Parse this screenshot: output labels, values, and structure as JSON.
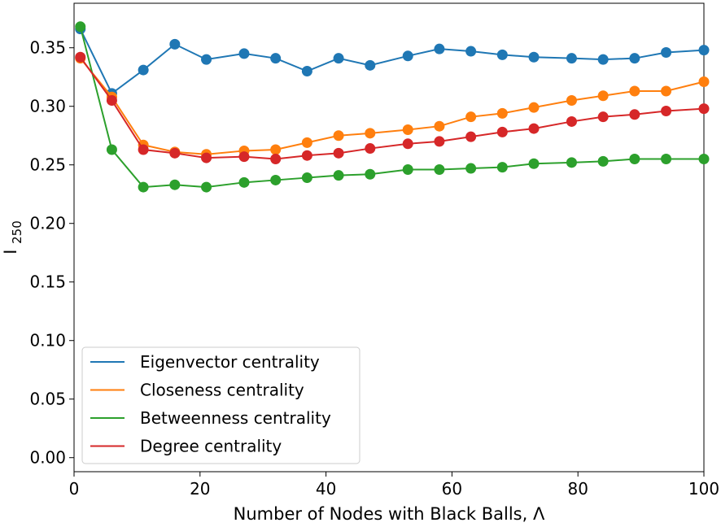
{
  "chart_data": {
    "type": "line",
    "title": "",
    "xlabel": "Number of Nodes with Black Balls, Λ",
    "ylabel": {
      "base": "I",
      "subscript": "250"
    },
    "xlim": [
      0,
      100
    ],
    "ylim": [
      -0.012,
      0.388
    ],
    "xticks": [
      0,
      20,
      40,
      60,
      80,
      100
    ],
    "xtick_labels": [
      "0",
      "20",
      "40",
      "60",
      "80",
      "100"
    ],
    "yticks": [
      0.0,
      0.05,
      0.1,
      0.15,
      0.2,
      0.25,
      0.3,
      0.35
    ],
    "ytick_labels": [
      "0.00",
      "0.05",
      "0.10",
      "0.15",
      "0.20",
      "0.25",
      "0.30",
      "0.35"
    ],
    "grid": false,
    "legend_position": "lower-left",
    "x": [
      1,
      6,
      11,
      16,
      21,
      27,
      32,
      37,
      42,
      47,
      53,
      58,
      63,
      68,
      73,
      79,
      84,
      89,
      94,
      100
    ],
    "series": [
      {
        "name": "Eigenvector centrality",
        "color": "#1f77b4",
        "values": [
          0.366,
          0.311,
          0.331,
          0.353,
          0.34,
          0.345,
          0.341,
          0.33,
          0.341,
          0.335,
          0.343,
          0.349,
          0.347,
          0.344,
          0.342,
          0.341,
          0.34,
          0.341,
          0.346,
          0.348
        ]
      },
      {
        "name": "Closeness centrality",
        "color": "#ff7f0e",
        "values": [
          0.341,
          0.308,
          0.267,
          0.261,
          0.259,
          0.262,
          0.263,
          0.269,
          0.275,
          0.277,
          0.28,
          0.283,
          0.291,
          0.294,
          0.299,
          0.305,
          0.309,
          0.313,
          0.313,
          0.321
        ]
      },
      {
        "name": "Betweenness centrality",
        "color": "#2ca02c",
        "values": [
          0.368,
          0.263,
          0.231,
          0.233,
          0.231,
          0.235,
          0.237,
          0.239,
          0.241,
          0.242,
          0.246,
          0.246,
          0.247,
          0.248,
          0.251,
          0.252,
          0.253,
          0.255,
          0.255,
          0.255
        ]
      },
      {
        "name": "Degree centrality",
        "color": "#d62728",
        "values": [
          0.342,
          0.305,
          0.263,
          0.26,
          0.256,
          0.257,
          0.255,
          0.258,
          0.26,
          0.264,
          0.268,
          0.27,
          0.274,
          0.278,
          0.281,
          0.287,
          0.291,
          0.293,
          0.296,
          0.298
        ]
      }
    ]
  }
}
